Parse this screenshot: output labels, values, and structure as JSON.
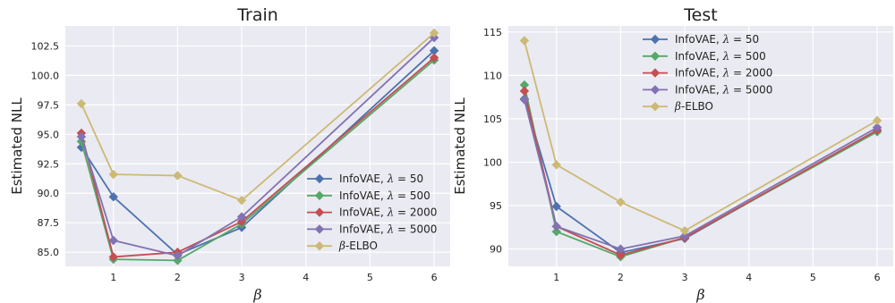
{
  "chart_data": [
    {
      "type": "line",
      "title": "Train",
      "xlabel": "β",
      "ylabel": "Estimated NLL",
      "xlim": [
        0.25,
        6.25
      ],
      "ylim": [
        83.8,
        104.2
      ],
      "xticks": [
        1,
        2,
        3,
        4,
        5,
        6
      ],
      "yticks": [
        85.0,
        87.5,
        90.0,
        92.5,
        95.0,
        97.5,
        100.0,
        102.5
      ],
      "ytick_labels": [
        "85.0",
        "87.5",
        "90.0",
        "92.5",
        "95.0",
        "97.5",
        "100.0",
        "102.5"
      ],
      "x": [
        0.5,
        1,
        2,
        3,
        6
      ],
      "grid": true,
      "legend_position": "lower-right",
      "series": [
        {
          "name": "InfoVAE, λ = 50",
          "color": "#4c72b0",
          "values": [
            93.9,
            89.7,
            84.8,
            87.1,
            102.1
          ]
        },
        {
          "name": "InfoVAE, λ = 500",
          "color": "#55a868",
          "values": [
            94.4,
            84.4,
            84.3,
            87.4,
            101.3
          ]
        },
        {
          "name": "InfoVAE, λ = 2000",
          "color": "#c44e52",
          "values": [
            95.1,
            84.6,
            85.0,
            87.6,
            101.5
          ]
        },
        {
          "name": "InfoVAE, λ = 5000",
          "color": "#8172b2",
          "values": [
            94.8,
            86.0,
            84.7,
            88.0,
            103.2
          ]
        },
        {
          "name": "β-ELBO",
          "color": "#ccb974",
          "values": [
            97.6,
            91.6,
            91.5,
            89.4,
            103.6
          ]
        }
      ]
    },
    {
      "type": "line",
      "title": "Test",
      "xlabel": "β",
      "ylabel": "Estimated NLL",
      "xlim": [
        0.25,
        6.25
      ],
      "ylim": [
        88.0,
        115.7
      ],
      "xticks": [
        1,
        2,
        3,
        4,
        5,
        6
      ],
      "yticks": [
        90,
        95,
        100,
        105,
        110,
        115
      ],
      "ytick_labels": [
        "90",
        "95",
        "100",
        "105",
        "110",
        "115"
      ],
      "x": [
        0.5,
        1,
        2,
        3,
        6
      ],
      "grid": true,
      "legend_position": "upper-center",
      "series": [
        {
          "name": "InfoVAE, λ = 50",
          "color": "#4c72b0",
          "values": [
            107.3,
            94.9,
            89.6,
            91.2,
            103.7
          ]
        },
        {
          "name": "InfoVAE, λ = 500",
          "color": "#55a868",
          "values": [
            108.9,
            92.0,
            89.1,
            91.3,
            103.5
          ]
        },
        {
          "name": "InfoVAE, λ = 2000",
          "color": "#c44e52",
          "values": [
            108.2,
            92.6,
            89.3,
            91.3,
            103.7
          ]
        },
        {
          "name": "InfoVAE, λ = 5000",
          "color": "#8172b2",
          "values": [
            107.2,
            92.6,
            90.0,
            91.5,
            104.0
          ]
        },
        {
          "name": "β-ELBO",
          "color": "#ccb974",
          "values": [
            114.0,
            99.7,
            95.4,
            92.1,
            104.8
          ]
        }
      ]
    }
  ]
}
